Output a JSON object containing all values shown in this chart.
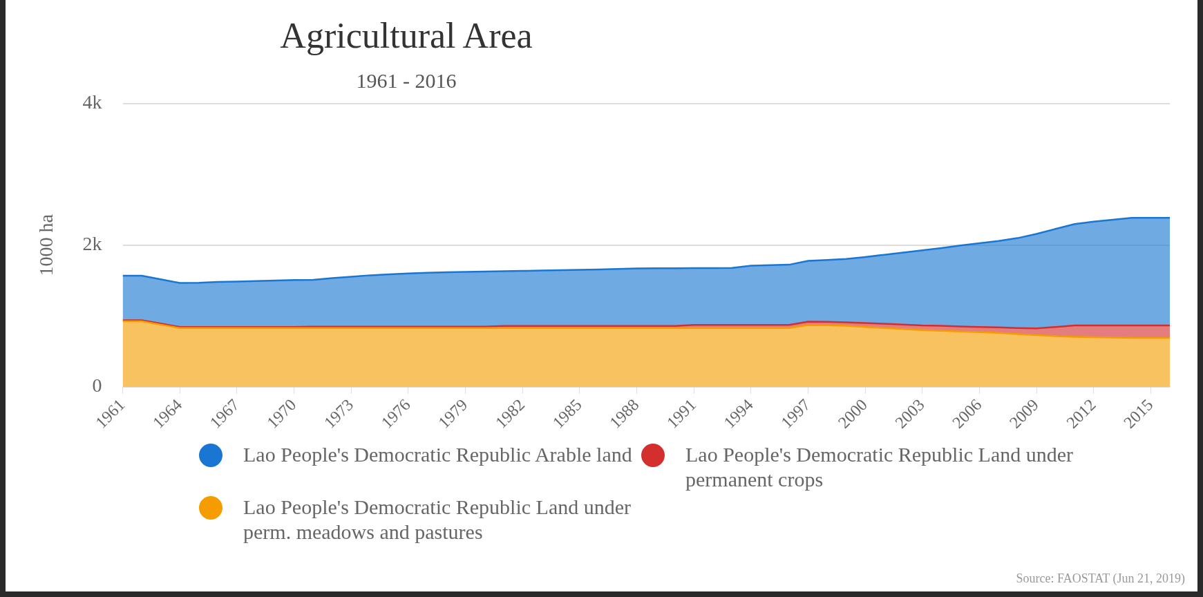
{
  "chart_data": {
    "type": "area",
    "title": "Agricultural Area",
    "subtitle": "1961 - 2016",
    "ylabel": "1000 ha",
    "stacked": true,
    "x": [
      1961,
      1962,
      1963,
      1964,
      1965,
      1966,
      1967,
      1968,
      1969,
      1970,
      1971,
      1972,
      1973,
      1974,
      1975,
      1976,
      1977,
      1978,
      1979,
      1980,
      1981,
      1982,
      1983,
      1984,
      1985,
      1986,
      1987,
      1988,
      1989,
      1990,
      1991,
      1992,
      1993,
      1994,
      1995,
      1996,
      1997,
      1998,
      1999,
      2000,
      2001,
      2002,
      2003,
      2004,
      2005,
      2006,
      2007,
      2008,
      2009,
      2010,
      2011,
      2012,
      2013,
      2014,
      2015,
      2016
    ],
    "series": [
      {
        "name": "Lao People's Democratic Republic Land under perm. meadows and pastures",
        "color": "#f59c00",
        "values": [
          925,
          925,
          877,
          829,
          829,
          829,
          829,
          829,
          829,
          829,
          829,
          829,
          829,
          829,
          829,
          829,
          829,
          829,
          829,
          829,
          829,
          829,
          829,
          829,
          829,
          829,
          829,
          829,
          829,
          829,
          829,
          829,
          829,
          829,
          829,
          829,
          870,
          868,
          860,
          845,
          830,
          815,
          800,
          790,
          780,
          770,
          760,
          745,
          730,
          715,
          705,
          700,
          695,
          690,
          690,
          690
        ]
      },
      {
        "name": "Lao People's Democratic Republic Land under permanent crops",
        "color": "#d32f2f",
        "values": [
          15,
          15,
          15,
          15,
          15,
          15,
          15,
          15,
          15,
          15,
          20,
          20,
          20,
          20,
          20,
          20,
          20,
          20,
          20,
          20,
          30,
          30,
          30,
          30,
          30,
          30,
          30,
          30,
          30,
          30,
          45,
          45,
          45,
          45,
          45,
          45,
          50,
          50,
          50,
          55,
          60,
          62,
          65,
          70,
          72,
          75,
          80,
          85,
          95,
          130,
          160,
          165,
          170,
          175,
          175,
          175
        ]
      },
      {
        "name": "Lao People's Democratic Republic Arable land",
        "color": "#1976d2",
        "values": [
          629,
          629,
          626,
          622,
          626,
          636,
          642,
          649,
          656,
          663,
          661,
          686,
          706,
          726,
          740,
          751,
          761,
          768,
          774,
          779,
          773,
          778,
          783,
          788,
          792,
          799,
          805,
          812,
          814,
          816,
          802,
          802,
          804,
          836,
          844,
          850,
          858,
          872,
          895,
          932,
          975,
          1020,
          1062,
          1100,
          1143,
          1183,
          1220,
          1270,
          1335,
          1385,
          1433,
          1467,
          1495,
          1521,
          1521,
          1521
        ]
      }
    ],
    "xlim": [
      1961,
      2016
    ],
    "xticks": [
      1961,
      1964,
      1967,
      1970,
      1973,
      1976,
      1979,
      1982,
      1985,
      1988,
      1991,
      1994,
      1997,
      2000,
      2003,
      2006,
      2009,
      2012,
      2015
    ],
    "ylim": [
      0,
      4000
    ],
    "yticks": [
      {
        "value": 0,
        "label": "0"
      },
      {
        "value": 2000,
        "label": "2k"
      },
      {
        "value": 4000,
        "label": "4k"
      }
    ],
    "grid": "y",
    "legend": "bottom",
    "marker": "none",
    "annotations": [
      "Source: FAOSTAT (Jun 21, 2019)"
    ]
  }
}
